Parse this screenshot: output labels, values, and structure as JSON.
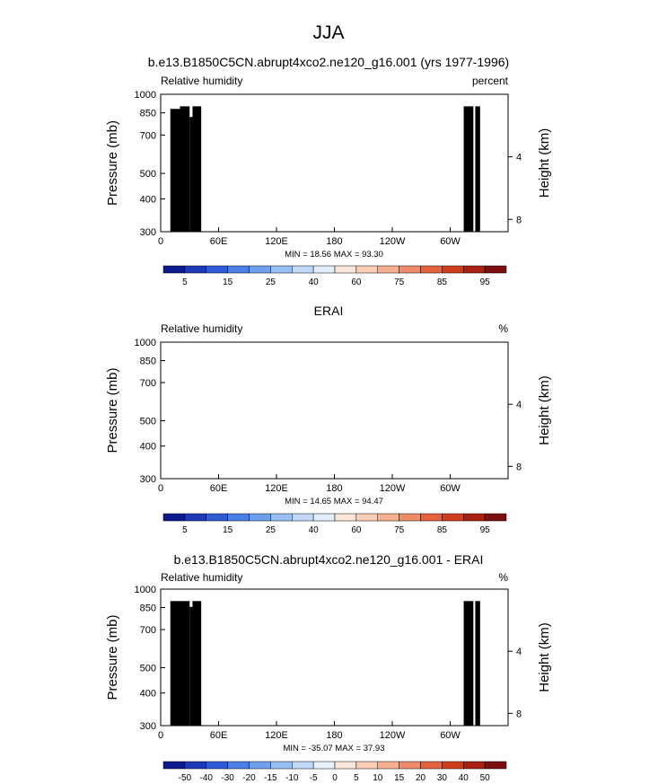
{
  "figure": {
    "title": "JJA"
  },
  "chart_data": [
    {
      "type": "heatmap",
      "title": "b.e13.B1850C5CN.abrupt4xco2.ne120_g16.001 (yrs 1977-1996)",
      "left_label": "Relative humidity",
      "right_label": "percent",
      "ylabel": "Pressure (mb)",
      "ylabel_right": "Height (km)",
      "x_ticks": [
        "0",
        "60E",
        "120E",
        "180",
        "120W",
        "60W"
      ],
      "y_ticks": [
        "300",
        "400",
        "500",
        "700",
        "850",
        "1000"
      ],
      "height_ticks": [
        "8",
        "4"
      ],
      "stats": "MIN = 18.56  MAX = 93.30",
      "colorbar_labels": [
        "5",
        "15",
        "25",
        "40",
        "60",
        "75",
        "85",
        "95"
      ],
      "range": [
        18.56,
        93.3
      ],
      "field": "model"
    },
    {
      "type": "heatmap",
      "title": "ERAI",
      "left_label": "Relative humidity",
      "right_label": "%",
      "ylabel": "Pressure (mb)",
      "ylabel_right": "Height (km)",
      "x_ticks": [
        "0",
        "60E",
        "120E",
        "180",
        "120W",
        "60W"
      ],
      "y_ticks": [
        "300",
        "400",
        "500",
        "700",
        "850",
        "1000"
      ],
      "height_ticks": [
        "8",
        "4"
      ],
      "stats": "MIN = 14.65  MAX = 94.47",
      "colorbar_labels": [
        "5",
        "15",
        "25",
        "40",
        "60",
        "75",
        "85",
        "95"
      ],
      "range": [
        14.65,
        94.47
      ],
      "field": "erai"
    },
    {
      "type": "heatmap",
      "title": "b.e13.B1850C5CN.abrupt4xco2.ne120_g16.001 - ERAI",
      "left_label": "Relative humidity",
      "right_label": "%",
      "ylabel": "Pressure (mb)",
      "ylabel_right": "Height (km)",
      "x_ticks": [
        "0",
        "60E",
        "120E",
        "180",
        "120W",
        "60W"
      ],
      "y_ticks": [
        "300",
        "400",
        "500",
        "700",
        "850",
        "1000"
      ],
      "height_ticks": [
        "8",
        "4"
      ],
      "stats": "MIN = -35.07  MAX = 37.93",
      "colorbar_labels": [
        "-50",
        "-40",
        "-30",
        "-20",
        "-15",
        "-10",
        "-5",
        "0",
        "5",
        "10",
        "15",
        "20",
        "30",
        "40",
        "50"
      ],
      "range": [
        -35.07,
        37.93
      ],
      "field": "diff"
    }
  ],
  "colors": {
    "abs_palette": [
      "#0d1a8c",
      "#1c39b8",
      "#2f5bd8",
      "#4a80e6",
      "#6fa0ee",
      "#97bff3",
      "#c0d9f7",
      "#e3eef9",
      "#fbe6da",
      "#fbcfb6",
      "#f7b08f",
      "#f08a68",
      "#e5623f",
      "#cf3d1c",
      "#a82010",
      "#7f0e0e"
    ],
    "diff_palette": [
      "#0d1a8c",
      "#1c39b8",
      "#2f5bd8",
      "#4a80e6",
      "#6fa0ee",
      "#97bff3",
      "#c0d9f7",
      "#e6f0fa",
      "#fbe6da",
      "#fbcfb6",
      "#f7b08f",
      "#f08a68",
      "#e5623f",
      "#cf3d1c",
      "#a82010",
      "#7f0e0e"
    ],
    "topography": "#000000"
  }
}
